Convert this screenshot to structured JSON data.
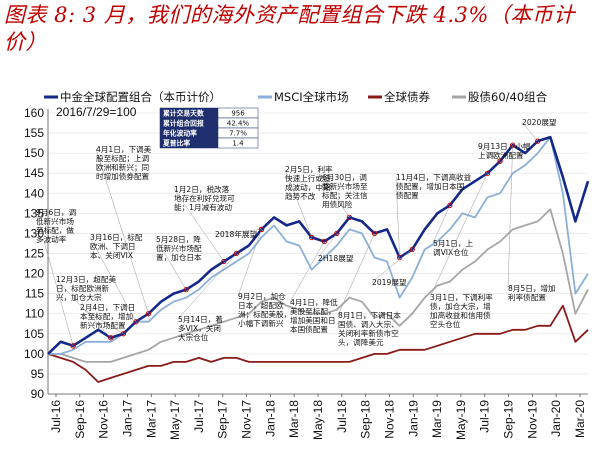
{
  "title": "图表 8: 3 月，我们的海外资产配置组合下跌 4.3%（本币计价）",
  "chart_data": {
    "type": "line",
    "base_label": "2016/7/29=100",
    "ylim": [
      90,
      160
    ],
    "y_ticks": [
      90,
      95,
      100,
      105,
      110,
      115,
      120,
      125,
      130,
      135,
      140,
      145,
      150,
      155,
      160
    ],
    "x_ticks": [
      "Jul-16",
      "Sep-16",
      "Nov-16",
      "Jan-17",
      "Mar-17",
      "May-17",
      "Jul-17",
      "Sep-17",
      "Nov-17",
      "Jan-18",
      "Mar-18",
      "May-18",
      "Jul-18",
      "Sep-18",
      "Nov-18",
      "Jan-19",
      "Mar-19",
      "May-19",
      "Jul-19",
      "Sep-19",
      "Nov-19",
      "Jan-20",
      "Mar-20"
    ],
    "legend": [
      "中金全球配置组合（本币计价）",
      "MSCI全球市场",
      "全球债券",
      "股债60/40组合"
    ],
    "series": [
      {
        "name": "中金全球配置组合（本币计价）",
        "color": "#14288A",
        "width": 2.6,
        "values": [
          100,
          103,
          102,
          104,
          106,
          104,
          105,
          108,
          110,
          113,
          115,
          116,
          118,
          121,
          123,
          125,
          127,
          131,
          134,
          132,
          133,
          129,
          128,
          130,
          134,
          133,
          130,
          131,
          124,
          126,
          131,
          135,
          137,
          141,
          143,
          145,
          148,
          152,
          150,
          153,
          154,
          144,
          133,
          143
        ]
      },
      {
        "name": "MSCI全球市场",
        "color": "#8BAFD8",
        "width": 1.8,
        "values": [
          100,
          100,
          101,
          103,
          103,
          103,
          105,
          108,
          108,
          111,
          113,
          114,
          116,
          119,
          121,
          123,
          125,
          129,
          132,
          128,
          127,
          121,
          124,
          127,
          131,
          130,
          124,
          123,
          114,
          119,
          126,
          128,
          131,
          135,
          134,
          139,
          140,
          145,
          147,
          150,
          154,
          140,
          115,
          120
        ]
      },
      {
        "name": "全球债券",
        "color": "#8B1A1A",
        "width": 1.8,
        "values": [
          100,
          99,
          98,
          96,
          93,
          94,
          95,
          96,
          97,
          97,
          98,
          98,
          99,
          98,
          99,
          99,
          98,
          98,
          98,
          98,
          98,
          98,
          98,
          98,
          98,
          99,
          100,
          100,
          101,
          101,
          101,
          102,
          103,
          104,
          105,
          105,
          105,
          106,
          106,
          107,
          107,
          112,
          103,
          106
        ]
      },
      {
        "name": "股债60/40组合",
        "color": "#A6A6A6",
        "width": 1.8,
        "values": [
          100,
          100,
          99,
          98,
          98,
          98,
          99,
          100,
          101,
          103,
          104,
          105,
          106,
          107,
          108,
          109,
          110,
          113,
          114,
          112,
          111,
          110,
          110,
          111,
          114,
          113,
          109,
          110,
          107,
          110,
          114,
          117,
          118,
          121,
          123,
          126,
          128,
          131,
          132,
          133,
          136,
          125,
          110,
          116
        ]
      }
    ],
    "stats": {
      "rows": [
        {
          "label": "累计交易天数",
          "value": "956"
        },
        {
          "label": "累计组合回报",
          "value": "42.4%"
        },
        {
          "label": "年化波动率",
          "value": "7.7%"
        },
        {
          "label": "夏普比率",
          "value": "1.4"
        }
      ]
    },
    "annotations": [
      {
        "text": "9月6日，调\n低新兴市场\n至标配，做\n多波动率",
        "ix": 2,
        "iy": 0
      },
      {
        "text": "12月3日，超配美\n日，标配欧洲新\n兴，加仓大宗",
        "ix": 5,
        "iy": 1
      },
      {
        "text": "3月16日，标配\n欧洲、下调日\n本、关闭VIX",
        "ix": 7,
        "iy": 2
      },
      {
        "text": "4月1日，下调美\n股至标配；上调\n欧洲和新兴；同\n时增加债券配置",
        "ix": 8,
        "iy": 3
      },
      {
        "text": "2月4日，下调日\n本至标配，增加\n新兴市场配置",
        "ix": 6,
        "iy": 4
      },
      {
        "text": "5月28日，降\n低新兴市场配\n置，加仓日本",
        "ix": 11,
        "iy": 5
      },
      {
        "text": "1月2日，税改落\n地存在利好兑现可\n能；1月减有波动",
        "ix": 14,
        "iy": 6
      },
      {
        "text": "2018年展望",
        "ix": 17,
        "iy": 7
      },
      {
        "text": "9月2日，加仓\n日本，超配欧\n洲；标配美股，\n小幅下调新兴",
        "ix": 17,
        "iy": 8
      },
      {
        "text": "5月14日，着\n多VIX，关闭\n大宗仓位",
        "ix": 15,
        "iy": 9
      },
      {
        "text": "2月5日，利率\n快速上行或造\n成波动，中期\n趋势不改",
        "ix": 21,
        "iy": 10
      },
      {
        "text": "6月30日，调\n整新兴市场至\n标配；关注信\n用债风险",
        "ix": 24,
        "iy": 11
      },
      {
        "text": "2H18展望",
        "ix": 23,
        "iy": 12
      },
      {
        "text": "4月1日，降低\n美股至标配，\n增加美国和日\n本国债配置",
        "ix": 22,
        "iy": 13
      },
      {
        "text": "8月1日，下调日本\n国债、调入大宗、\n关闭利率新债市空\n头，调降美元",
        "ix": 26,
        "iy": 14
      },
      {
        "text": "11月4日，下调高收益\n债配置，增加日本国\n债配置",
        "ix": 28,
        "iy": 15
      },
      {
        "text": "2019展望",
        "ix": 29,
        "iy": 16
      },
      {
        "text": "5月1日，上\n调VIX仓位",
        "ix": 32,
        "iy": 17
      },
      {
        "text": "9月13日，小幅\n上调欧洲配置",
        "ix": 36,
        "iy": 18
      },
      {
        "text": "2020展望",
        "ix": 39,
        "iy": 19
      },
      {
        "text": "3月1日，下调利率\n债，加仓大宗，增\n加高收益和信用债\n空头仓位",
        "ix": 35,
        "iy": 20
      },
      {
        "text": "8月5日，增加\n利率债配置",
        "ix": 37,
        "iy": 21
      }
    ]
  }
}
